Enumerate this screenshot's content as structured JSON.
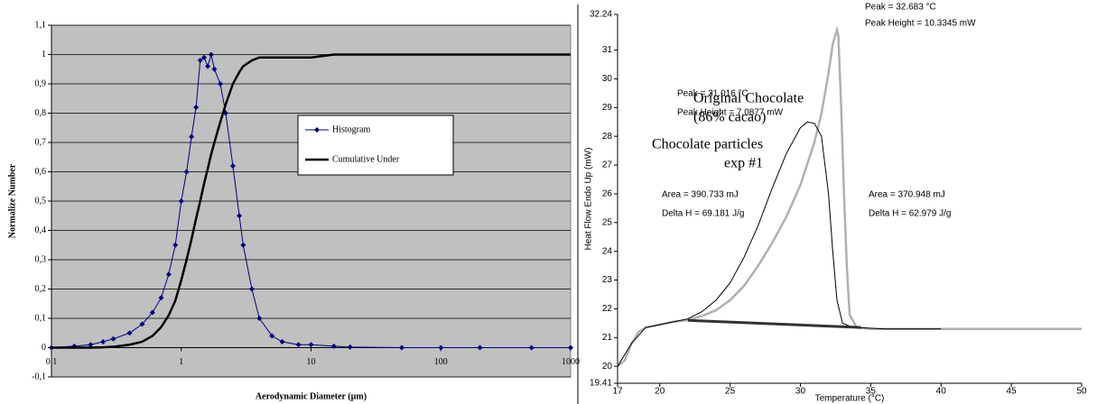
{
  "chart_data": [
    {
      "type": "line",
      "xscale": "log",
      "grid": true,
      "background": "#c0c0c0",
      "xlabel": "Aerodynamic Diameter (µm)",
      "ylabel": "Normalize Number",
      "xlim": [
        0.1,
        1000
      ],
      "ylim": [
        -0.1,
        1.1
      ],
      "xticks": [
        {
          "value": 0.1,
          "label": "0,1"
        },
        1,
        10,
        100,
        1000
      ],
      "yticks": [
        {
          "value": -0.1,
          "label": "-0,1"
        },
        0,
        {
          "value": 0.1,
          "label": "0,1"
        },
        {
          "value": 0.2,
          "label": "0,2"
        },
        {
          "value": 0.3,
          "label": "0,3"
        },
        {
          "value": 0.4,
          "label": "0,4"
        },
        {
          "value": 0.5,
          "label": "0,5"
        },
        {
          "value": 0.6,
          "label": "0,6"
        },
        {
          "value": 0.7,
          "label": "0,7"
        },
        {
          "value": 0.8,
          "label": "0,8"
        },
        {
          "value": 0.9,
          "label": "0,9"
        },
        1,
        {
          "value": 1.1,
          "label": "1,1"
        }
      ],
      "x": [
        0.1,
        0.15,
        0.2,
        0.25,
        0.3,
        0.4,
        0.5,
        0.6,
        0.7,
        0.8,
        0.9,
        1.0,
        1.1,
        1.2,
        1.3,
        1.4,
        1.5,
        1.6,
        1.7,
        1.8,
        2.0,
        2.2,
        2.5,
        2.8,
        3.0,
        3.5,
        4,
        5,
        6,
        8,
        10,
        15,
        20,
        50,
        100,
        200,
        500,
        1000
      ],
      "series": [
        {
          "name": "Histogram",
          "color": "#000080",
          "markers": true,
          "values": [
            0,
            0.005,
            0.01,
            0.02,
            0.03,
            0.05,
            0.08,
            0.12,
            0.17,
            0.25,
            0.35,
            0.5,
            0.6,
            0.72,
            0.82,
            0.98,
            0.99,
            0.96,
            1.0,
            0.95,
            0.9,
            0.8,
            0.62,
            0.45,
            0.35,
            0.2,
            0.1,
            0.04,
            0.02,
            0.01,
            0.01,
            0.005,
            0.002,
            0,
            0,
            0,
            0,
            0
          ]
        },
        {
          "name": "Cumulative Under",
          "color": "#000000",
          "markers": false,
          "values": [
            0,
            0,
            0,
            0.001,
            0.003,
            0.01,
            0.02,
            0.04,
            0.07,
            0.11,
            0.16,
            0.23,
            0.3,
            0.37,
            0.44,
            0.5,
            0.56,
            0.61,
            0.66,
            0.7,
            0.77,
            0.83,
            0.9,
            0.94,
            0.96,
            0.98,
            0.99,
            0.99,
            0.99,
            0.99,
            0.99,
            1,
            1,
            1,
            1,
            1,
            1,
            1
          ]
        }
      ]
    },
    {
      "type": "line",
      "xscale": "linear",
      "grid": false,
      "background": "#ffffff",
      "xlabel": "Temperature (°C)",
      "ylabel": "Heat Flow Endo Up (mW)",
      "xlim": [
        17,
        50
      ],
      "ylim": [
        19.41,
        32.24
      ],
      "xticks": [
        17,
        20,
        25,
        30,
        35,
        40,
        45,
        50
      ],
      "yticks": [
        19.41,
        20,
        21,
        22,
        23,
        24,
        25,
        26,
        27,
        28,
        29,
        30,
        31,
        32.24
      ],
      "series": [
        {
          "color": "#b0b0b0",
          "width": 2.5,
          "x": [
            17,
            17.5,
            18,
            18.5,
            19,
            20,
            21,
            22,
            23,
            24,
            25,
            26,
            27,
            28,
            29,
            30,
            31,
            31.5,
            32,
            32.3,
            32.6,
            32.7,
            32.9,
            33.1,
            33.3,
            33.5,
            34,
            35,
            40,
            45,
            50
          ],
          "values": [
            20,
            20.2,
            20.8,
            21.2,
            21.35,
            21.45,
            21.55,
            21.6,
            21.75,
            21.95,
            22.3,
            22.8,
            23.5,
            24.3,
            25.2,
            26.3,
            27.8,
            28.8,
            30.2,
            31.2,
            31.7,
            31.5,
            29,
            26,
            23.5,
            21.8,
            21.35,
            21.3,
            21.3,
            21.3,
            21.3
          ]
        },
        {
          "color": "#000000",
          "width": 1,
          "x": [
            17,
            18,
            19,
            20,
            21,
            22,
            23,
            24,
            25,
            26,
            27,
            28,
            29,
            30,
            30.5,
            31,
            31.5,
            32,
            32.3,
            32.6,
            33,
            33.5,
            34,
            36,
            40
          ],
          "values": [
            20,
            20.8,
            21.35,
            21.45,
            21.55,
            21.65,
            21.9,
            22.3,
            22.9,
            23.8,
            24.9,
            26.2,
            27.4,
            28.3,
            28.5,
            28.45,
            28,
            26,
            24,
            22.3,
            21.5,
            21.4,
            21.35,
            21.3,
            21.3
          ]
        },
        {
          "color": "#333333",
          "width": 3,
          "x": [
            22,
            34.3
          ],
          "values": [
            21.6,
            21.35
          ]
        }
      ],
      "annotations": [
        "Peak = 32.683 °C",
        "Peak Height = 10.3345 mW",
        "Peak = 31.016 °C",
        "Peak Height = 7.0877 mW",
        "Original Chocolate",
        "(86% cacao)",
        "Chocolate particles",
        "exp #1",
        "Area = 390.733 mJ",
        "Delta H = 69.181 J/g",
        "Area = 370.948 mJ",
        "Delta H = 62.979 J/g"
      ]
    }
  ]
}
